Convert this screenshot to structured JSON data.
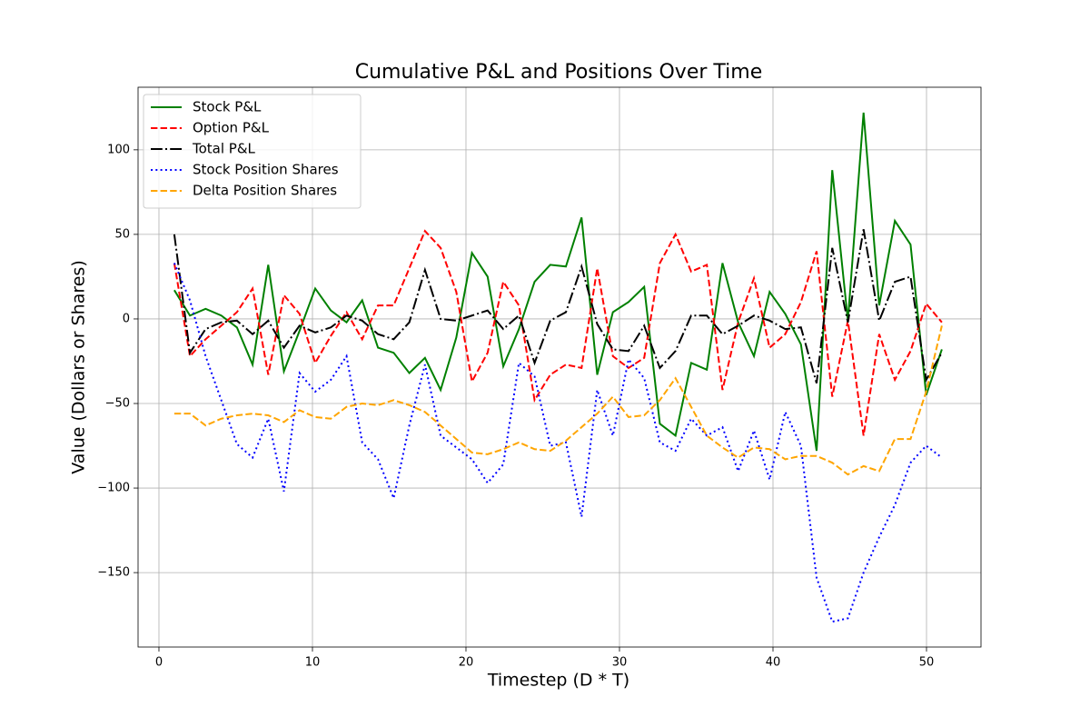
{
  "chart_data": {
    "type": "line",
    "title": "Cumulative P&L and Positions Over Time",
    "x_label": "Timestep (D * T)",
    "y_label": "Value (Dollars or Shares)",
    "x": [
      1.0,
      2.02,
      3.04,
      4.06,
      5.08,
      6.1,
      7.12,
      8.14,
      9.16,
      10.18,
      11.2,
      12.22,
      13.24,
      14.27,
      15.29,
      16.31,
      17.33,
      18.35,
      19.37,
      20.39,
      21.41,
      22.43,
      23.45,
      24.47,
      25.49,
      26.51,
      27.53,
      28.55,
      29.57,
      30.59,
      31.61,
      32.63,
      33.65,
      34.67,
      35.69,
      36.71,
      37.73,
      38.76,
      39.78,
      40.8,
      41.82,
      42.84,
      43.86,
      44.88,
      45.9,
      46.92,
      47.94,
      48.96,
      49.98,
      51.0
    ],
    "series": [
      {
        "name": "Stock P&L",
        "color": "green",
        "linestyle": "solid",
        "values": [
          17,
          2,
          6,
          2,
          -5,
          -27,
          32,
          -31,
          -7,
          18,
          5,
          -2,
          11,
          -17,
          -20,
          -32,
          -23,
          -42,
          -11,
          39,
          25,
          -28,
          -6,
          22,
          32,
          31,
          60,
          -33,
          4,
          10,
          19,
          -62,
          -69,
          -26,
          -30,
          33,
          -2,
          -22,
          16,
          3,
          -15,
          -78,
          88,
          -1,
          122,
          8,
          58,
          44,
          -45,
          -18
        ]
      },
      {
        "name": "Option P&L",
        "color": "red",
        "linestyle": "dashed",
        "values": [
          33,
          -22,
          -12,
          -4,
          4,
          18,
          -33,
          14,
          3,
          -26,
          -10,
          4,
          -12,
          8,
          8,
          30,
          52,
          42,
          16,
          -37,
          -20,
          22,
          8,
          -48,
          -33,
          -27,
          -29,
          30,
          -22,
          -29,
          -23,
          33,
          50,
          28,
          32,
          -42,
          -2,
          24,
          -17,
          -9,
          10,
          40,
          -46,
          -1,
          -69,
          -9,
          -36,
          -19,
          9,
          -2
        ]
      },
      {
        "name": "Total P&L",
        "color": "black",
        "linestyle": "dashdot",
        "values": [
          50,
          -20,
          -6,
          -2,
          -1,
          -9,
          -1,
          -17,
          -4,
          -8,
          -5,
          2,
          -1,
          -9,
          -12,
          -2,
          29,
          0,
          -1,
          2,
          5,
          -6,
          2,
          -26,
          -1,
          4,
          31,
          -3,
          -18,
          -19,
          -4,
          -29,
          -19,
          2,
          2,
          -9,
          -4,
          2,
          -1,
          -6,
          -5,
          -38,
          42,
          -2,
          53,
          -1,
          22,
          25,
          -36,
          -20
        ]
      },
      {
        "name": "Stock Position Shares",
        "color": "blue",
        "linestyle": "dotted",
        "values": [
          33,
          11,
          -22,
          -48,
          -74,
          -82,
          -59,
          -102,
          -32,
          -43,
          -36,
          -22,
          -73,
          -83,
          -106,
          -63,
          -27,
          -69,
          -76,
          -83,
          -97,
          -86,
          -26,
          -34,
          -75,
          -73,
          -117,
          -42,
          -69,
          -24,
          -35,
          -73,
          -78,
          -59,
          -69,
          -64,
          -90,
          -66,
          -95,
          -55,
          -75,
          -153,
          -179,
          -177,
          -150,
          -129,
          -110,
          -85,
          -75,
          -82
        ]
      },
      {
        "name": "Delta Position Shares",
        "color": "orange",
        "linestyle": "dashed",
        "values": [
          -56,
          -56,
          -63,
          -59,
          -57,
          -56,
          -57,
          -61,
          -54,
          -58,
          -59,
          -52,
          -50,
          -51,
          -48,
          -51,
          -55,
          -63,
          -71,
          -79,
          -80,
          -77,
          -73,
          -77,
          -78,
          -72,
          -64,
          -56,
          -46,
          -58,
          -57,
          -48,
          -35,
          -52,
          -69,
          -76,
          -82,
          -76,
          -77,
          -83,
          -81,
          -81,
          -85,
          -92,
          -87,
          -90,
          -71,
          -71,
          -43,
          -4
        ]
      }
    ],
    "xlim": [
      -1.36,
      53.55
    ],
    "ylim": [
      -194,
      137
    ],
    "xticks": [
      0,
      10,
      20,
      30,
      40,
      50
    ],
    "yticks": [
      {
        "value": -150,
        "label": "−150"
      },
      {
        "value": -100,
        "label": "−100"
      },
      {
        "value": -50,
        "label": "−50"
      },
      0,
      50,
      100
    ],
    "grid": true,
    "legend": "upper left"
  }
}
